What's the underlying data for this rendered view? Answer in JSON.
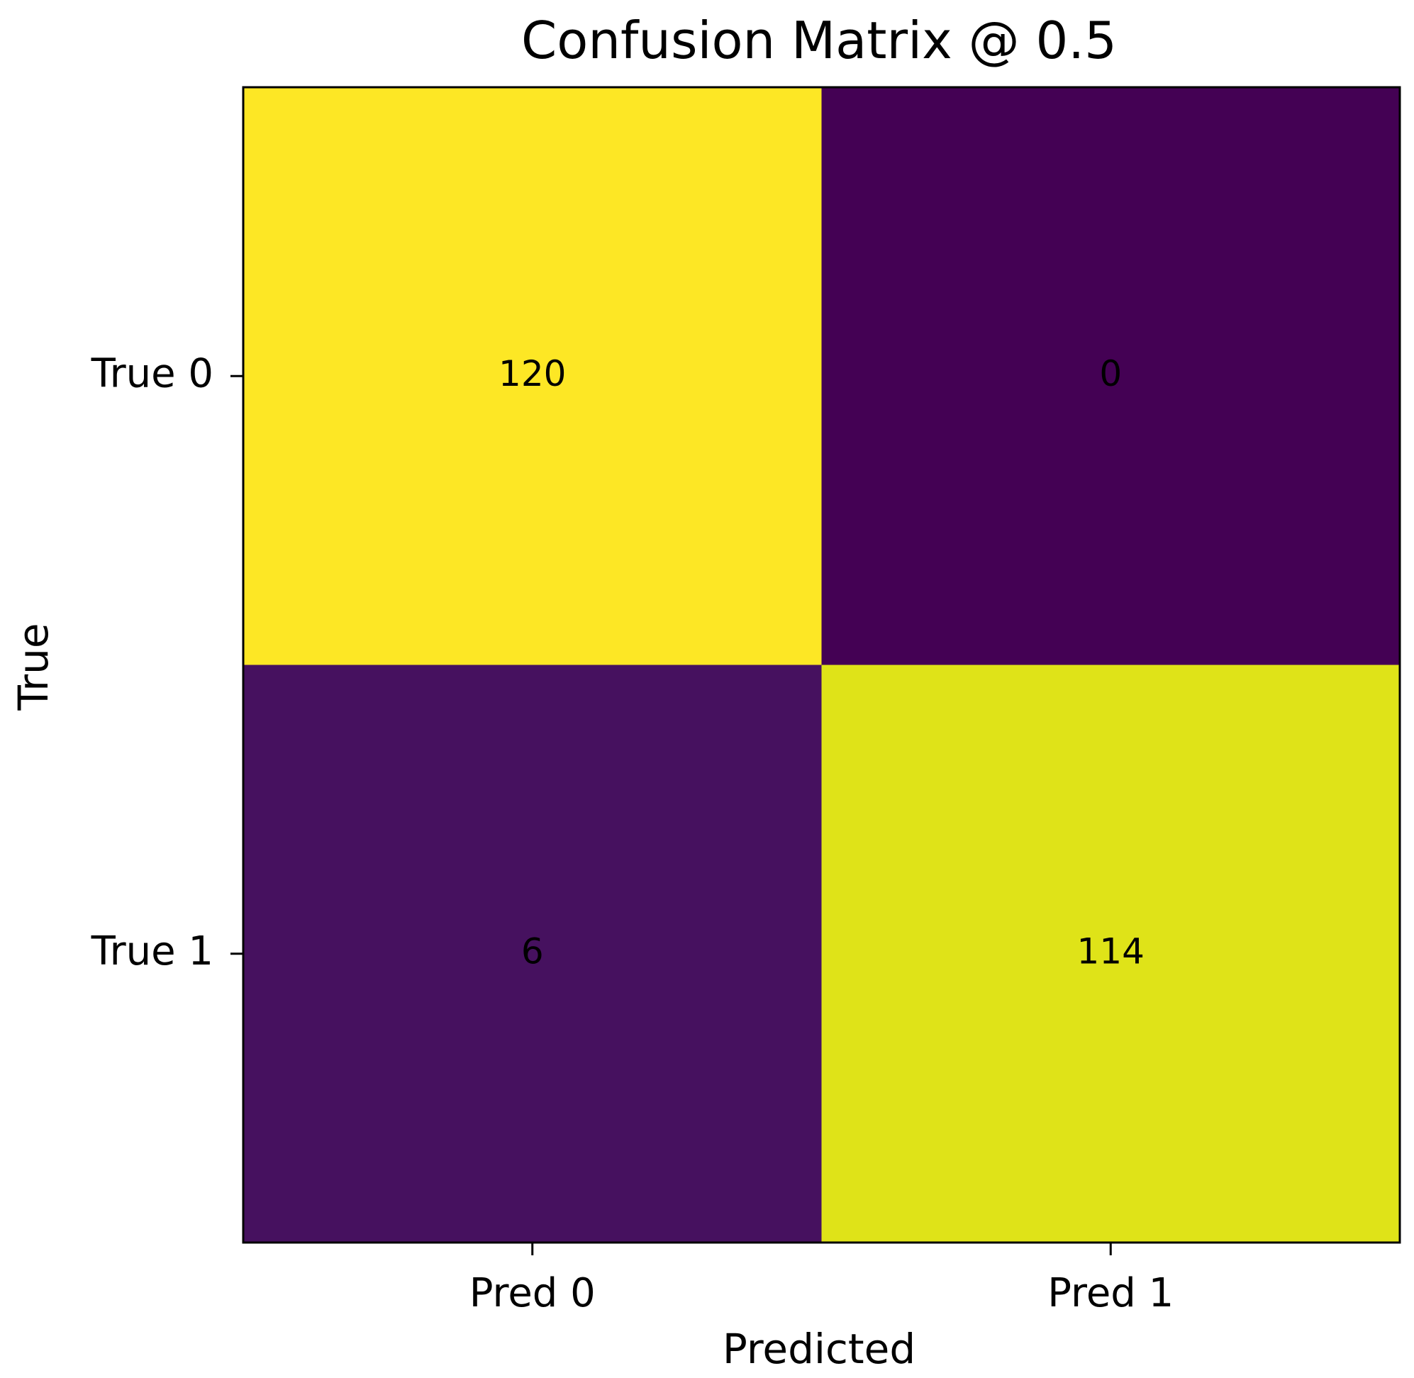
{
  "chart_data": {
    "type": "heatmap",
    "title": "Confusion Matrix @ 0.5",
    "xlabel": "Predicted",
    "ylabel": "True",
    "x_categories": [
      "Pred 0",
      "Pred 1"
    ],
    "y_categories": [
      "True 0",
      "True 1"
    ],
    "values": [
      [
        120,
        0
      ],
      [
        6,
        114
      ]
    ],
    "colormap": "viridis",
    "color_range": [
      0,
      120
    ],
    "colors": {
      "true0_pred0": "#fde725",
      "true0_pred1": "#440154",
      "true1_pred0": "#46115f",
      "true1_pred1": "#dfe318"
    },
    "grid": false,
    "legend": "none"
  }
}
